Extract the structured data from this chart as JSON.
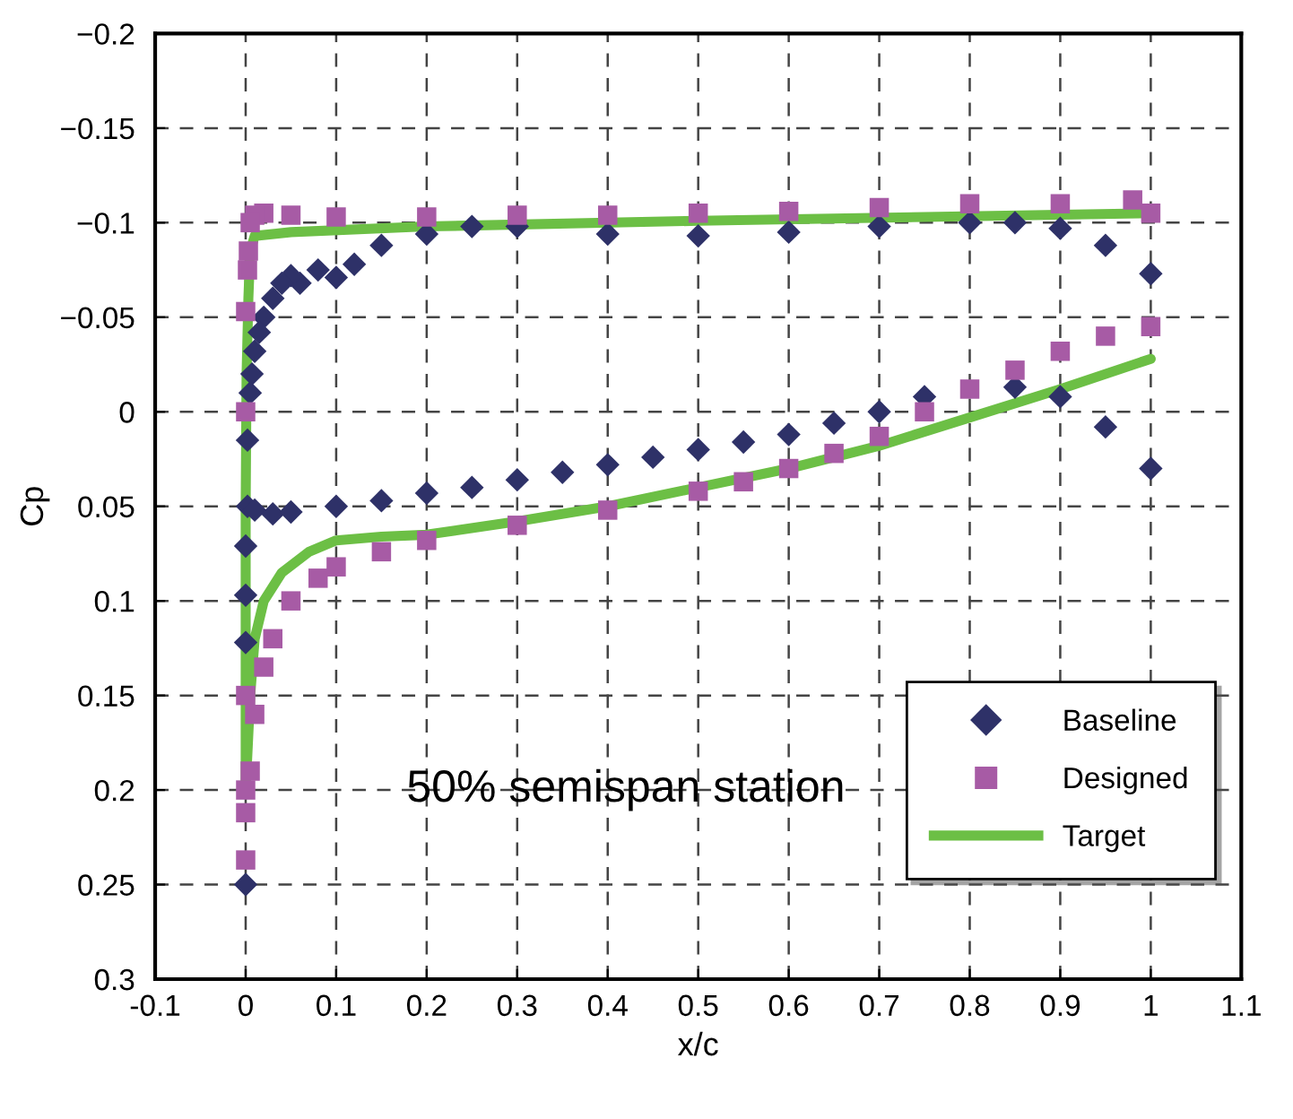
{
  "chart_data": {
    "type": "scatter",
    "xlabel": "x/c",
    "ylabel": "Cp",
    "xlim": [
      -0.1,
      1.1
    ],
    "xticks": [
      -0.1,
      0,
      0.1,
      0.2,
      0.3,
      0.4,
      0.5,
      0.6,
      0.7,
      0.8,
      0.9,
      1,
      1.1
    ],
    "ylim": [
      0.3,
      -0.2
    ],
    "yticks": [
      {
        "value": -0.2,
        "label": "−0.2"
      },
      {
        "value": -0.15,
        "label": "−0.15"
      },
      {
        "value": -0.1,
        "label": "−0.1"
      },
      {
        "value": -0.05,
        "label": "−0.05"
      },
      0,
      0.05,
      0.1,
      0.15,
      0.2,
      0.25,
      0.3
    ],
    "grid": true,
    "legend": "bottom right",
    "annotations": [
      "50% semispan station"
    ],
    "series": [
      {
        "name": "Baseline",
        "marker": "diamond",
        "color": "#2e3168",
        "x": [
          1,
          0.95,
          0.9,
          0.85,
          0.8,
          0.7,
          0.6,
          0.5,
          0.4,
          0.3,
          0.25,
          0.2,
          0.15,
          0.12,
          0.1,
          0.08,
          0.06,
          0.05,
          0.04,
          0.03,
          0.02,
          0.015,
          0.01,
          0.007,
          0.005,
          0.002,
          0,
          0,
          0,
          0,
          0.002,
          0.01,
          0.03,
          0.05,
          0.1,
          0.15,
          0.2,
          0.25,
          0.3,
          0.35,
          0.4,
          0.45,
          0.5,
          0.55,
          0.6,
          0.65,
          0.7,
          0.75,
          0.85,
          0.9,
          0.95,
          1
        ],
        "values": [
          -0.073,
          -0.088,
          -0.097,
          -0.1,
          -0.1,
          -0.098,
          -0.095,
          -0.093,
          -0.094,
          -0.098,
          -0.098,
          -0.094,
          -0.088,
          -0.078,
          -0.071,
          -0.075,
          -0.068,
          -0.072,
          -0.068,
          -0.06,
          -0.05,
          -0.042,
          -0.032,
          -0.02,
          -0.01,
          0.015,
          0.071,
          0.097,
          0.122,
          0.25,
          0.05,
          0.052,
          0.054,
          0.053,
          0.05,
          0.047,
          0.043,
          0.04,
          0.036,
          0.032,
          0.028,
          0.024,
          0.02,
          0.016,
          0.012,
          0.006,
          0.0,
          -0.008,
          -0.013,
          -0.008,
          0.008,
          0.03
        ]
      },
      {
        "name": "Designed",
        "marker": "square",
        "color": "#a75ba5",
        "x": [
          1,
          0.98,
          0.9,
          0.8,
          0.7,
          0.6,
          0.5,
          0.4,
          0.3,
          0.2,
          0.1,
          0.05,
          0.02,
          0.01,
          0.005,
          0.003,
          0.002,
          0,
          0,
          0,
          0,
          0,
          0,
          0.005,
          0.01,
          0.02,
          0.03,
          0.05,
          0.08,
          0.1,
          0.15,
          0.2,
          0.3,
          0.4,
          0.5,
          0.55,
          0.6,
          0.65,
          0.7,
          0.75,
          0.8,
          0.85,
          0.9,
          0.95,
          1
        ],
        "values": [
          -0.105,
          -0.112,
          -0.11,
          -0.11,
          -0.108,
          -0.106,
          -0.105,
          -0.104,
          -0.104,
          -0.103,
          -0.103,
          -0.104,
          -0.105,
          -0.104,
          -0.1,
          -0.085,
          -0.075,
          -0.053,
          0,
          0.15,
          0.2,
          0.212,
          0.237,
          0.19,
          0.16,
          0.135,
          0.12,
          0.1,
          0.088,
          0.082,
          0.074,
          0.068,
          0.06,
          0.052,
          0.042,
          0.037,
          0.03,
          0.022,
          0.013,
          0.0,
          -0.012,
          -0.022,
          -0.032,
          -0.04,
          -0.045
        ]
      },
      {
        "name": "Target",
        "type": "line",
        "marker": "none",
        "color": "#6cbf45",
        "x": [
          1,
          0.5,
          0.2,
          0.05,
          0.01,
          0.005,
          0.003,
          0.001,
          0,
          0,
          0.005,
          0.01,
          0.02,
          0.04,
          0.07,
          0.1,
          0.15,
          0.2,
          0.3,
          0.4,
          0.5,
          0.6,
          0.7,
          0.8,
          0.9,
          1
        ],
        "values": [
          -0.105,
          -0.101,
          -0.098,
          -0.095,
          -0.093,
          -0.085,
          -0.06,
          -0.02,
          0.05,
          0.2,
          0.15,
          0.12,
          0.1,
          0.085,
          0.074,
          0.068,
          0.066,
          0.065,
          0.058,
          0.05,
          0.04,
          0.03,
          0.018,
          0.003,
          -0.012,
          -0.028
        ]
      }
    ]
  }
}
